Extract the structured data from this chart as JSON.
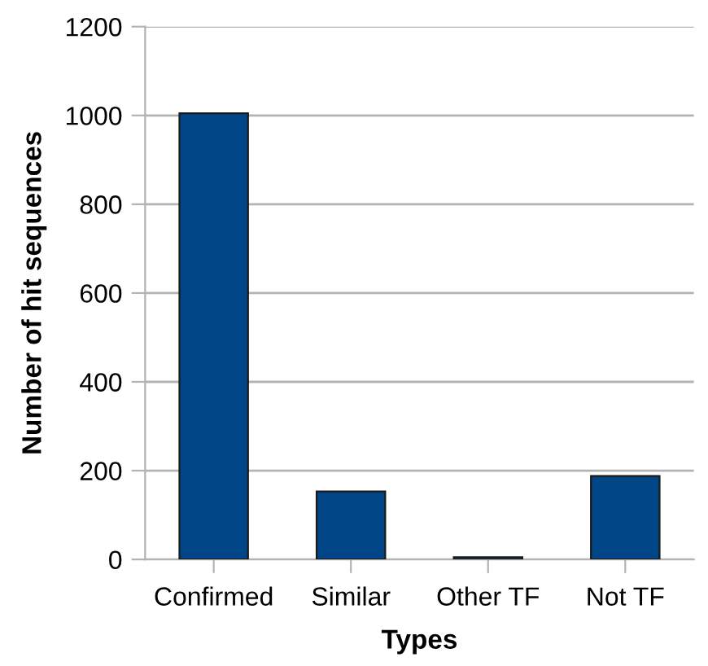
{
  "chart_data": {
    "type": "bar",
    "xlabel": "Types",
    "ylabel": "Number of hit sequences",
    "categories": [
      "Confirmed",
      "Similar",
      "Other TF",
      "Not TF"
    ],
    "values": [
      1005,
      153,
      5,
      188
    ],
    "color": "#004586",
    "ylim": [
      0,
      1200
    ],
    "yticks": [
      0,
      200,
      400,
      600,
      800,
      1000,
      1200
    ],
    "grid": "y"
  }
}
